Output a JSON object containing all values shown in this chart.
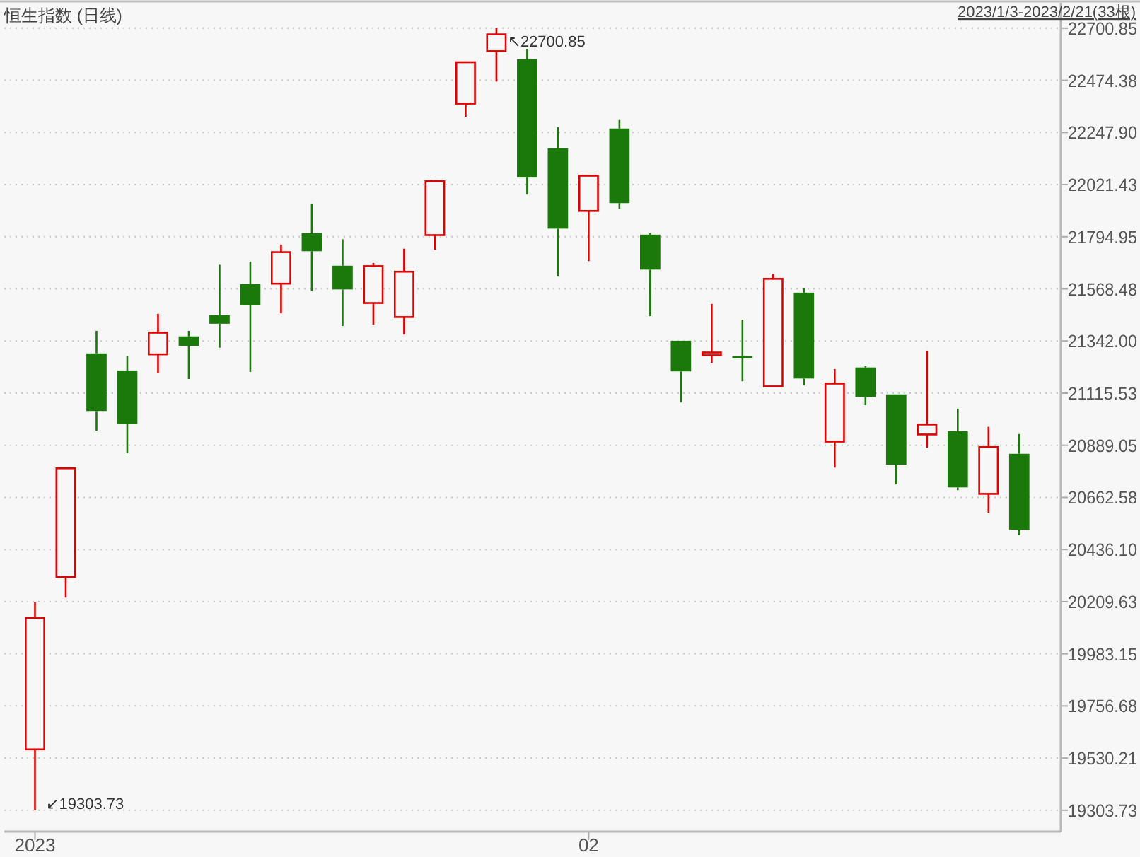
{
  "chart_data": {
    "type": "candlestick",
    "title": "恒生指数 (日线)",
    "subtitle": "2023/1/3-2023/2/21(33根)",
    "categories": [
      "2023",
      null,
      null,
      null,
      null,
      null,
      null,
      null,
      null,
      null,
      null,
      null,
      null,
      null,
      null,
      null,
      null,
      null,
      "02",
      null,
      null,
      null,
      null,
      null,
      null,
      null,
      null,
      null,
      null,
      null,
      null,
      null,
      null
    ],
    "ohlc": [
      [
        19568,
        20207,
        19303.73,
        20139
      ],
      [
        20317,
        20789,
        20227,
        20789
      ],
      [
        21288,
        21386,
        20952,
        21038
      ],
      [
        21214,
        21276,
        20854,
        20981
      ],
      [
        21284,
        21460,
        21202,
        21378
      ],
      [
        21362,
        21386,
        21177,
        21321
      ],
      [
        21454,
        21673,
        21313,
        21417
      ],
      [
        21589,
        21687,
        21208,
        21497
      ],
      [
        21591,
        21761,
        21462,
        21728
      ],
      [
        21810,
        21939,
        21558,
        21732
      ],
      [
        21669,
        21784,
        21407,
        21566
      ],
      [
        21507,
        21681,
        21413,
        21667
      ],
      [
        21446,
        21743,
        21370,
        21643
      ],
      [
        21802,
        22042,
        21738,
        22036
      ],
      [
        22373,
        22553,
        22316,
        22553
      ],
      [
        22601,
        22700.85,
        22469,
        22674
      ],
      [
        22566,
        22611,
        21978,
        22052
      ],
      [
        22179,
        22271,
        21622,
        21830
      ],
      [
        21907,
        22060,
        21689,
        22060
      ],
      [
        22265,
        22302,
        21916,
        21941
      ],
      [
        21804,
        21810,
        21450,
        21652
      ],
      [
        21343,
        21343,
        21075,
        21210
      ],
      [
        21280,
        21503,
        21247,
        21292
      ],
      [
        21276,
        21435,
        21167,
        21267
      ],
      [
        21145,
        21632,
        21145,
        21612
      ],
      [
        21552,
        21571,
        21149,
        21179
      ],
      [
        20905,
        21220,
        20792,
        21157
      ],
      [
        21227,
        21233,
        21063,
        21099
      ],
      [
        21110,
        21110,
        20719,
        20805
      ],
      [
        20936,
        21300,
        20878,
        20979
      ],
      [
        20950,
        21048,
        20694,
        20706
      ],
      [
        20678,
        20969,
        20596,
        20881
      ],
      [
        20852,
        20938,
        20498,
        20522
      ]
    ],
    "ylim": [
      19211,
      22811
    ],
    "yticks": [
      22700.85,
      22474.38,
      {
        "value": 22247.9,
        "label": "22247.90"
      },
      22021.43,
      21794.95,
      21568.48,
      {
        "value": 21342,
        "label": "21342.00"
      },
      21115.53,
      20889.05,
      20662.58,
      {
        "value": 20436.1,
        "label": "20436.10"
      },
      20209.63,
      19983.15,
      19756.68,
      19530.21,
      19303.73
    ],
    "grid": "y",
    "annotations": [
      "↖22700.85",
      "↙19303.73"
    ]
  }
}
